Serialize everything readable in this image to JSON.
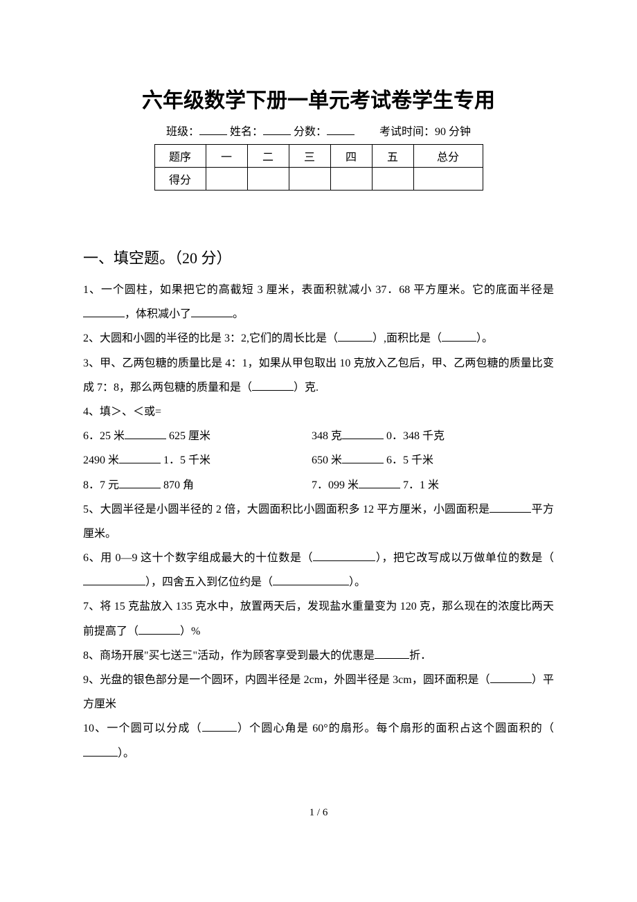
{
  "title": "六年级数学下册一单元考试卷学生专用",
  "info": {
    "class_label": "班级：",
    "name_label": "姓名：",
    "score_label": "分数：",
    "time_label": "考试时间：90 分钟"
  },
  "score_table": {
    "row1": [
      "题序",
      "一",
      "二",
      "三",
      "四",
      "五",
      "总分"
    ],
    "row2_label": "得分"
  },
  "section1": {
    "heading": "一、填空题。（20 分）",
    "q1": {
      "a": "1、一个圆柱，如果把它的高截短 3 厘米，表面积就减小 37．68 平方厘米。它的底面半径是",
      "b": "，体积减小了",
      "c": "。"
    },
    "q2": {
      "a": "2、大圆和小圆的半径的比是 3：2,它们的周长比是（",
      "b": "）,面积比是（",
      "c": "）。"
    },
    "q3": {
      "a": "3、甲、乙两包糖的质量比是 4：1，如果从甲包取出 10 克放入乙包后，甲、乙两包糖的质量比变成 7：8，那么两包糖的质量和是（",
      "b": "）克."
    },
    "q4": {
      "intro": "4、填＞、＜或=",
      "r1l_a": "6．25 米",
      "r1l_b": " 625 厘米",
      "r1r_a": "348 克",
      "r1r_b": " 0．348 千克",
      "r2l_a": "2490 米",
      "r2l_b": " 1．5 千米",
      "r2r_a": "650 米",
      "r2r_b": " 6．5 千米",
      "r3l_a": "8．7 元",
      "r3l_b": " 870 角",
      "r3r_a": "7．099 米",
      "r3r_b": " 7．1 米"
    },
    "q5": {
      "a": "5、大圆半径是小圆半径的 2 倍，大圆面积比小圆面积多 12 平方厘米，小圆面积是",
      "b": "平方厘米。"
    },
    "q6": {
      "a": "6、用 0—9 这十个数字组成最大的十位数是（",
      "b": "），把它改写成以万做单位的数是（",
      "c": "），四舍五入到亿位约是（",
      "d": "）。"
    },
    "q7": {
      "a": "7、将 15 克盐放入 135 克水中，放置两天后，发现盐水重量变为 120 克，那么现在的浓度比两天前提高了（",
      "b": "）%"
    },
    "q8": {
      "a": "8、商场开展\"买七送三\"活动，作为顾客享受到最大的优惠是",
      "b": "折．"
    },
    "q9": {
      "a": "9、光盘的银色部分是一个圆环，内圆半径是 2cm，外圆半径是 3cm，圆环面积是（",
      "b": "）平方厘米"
    },
    "q10": {
      "a": "10、一个圆可以分成（",
      "b": "）个圆心角是 60°的扇形。每个扇形的面积占这个圆面积的（",
      "c": "）。"
    }
  },
  "page_num": "1 / 6"
}
